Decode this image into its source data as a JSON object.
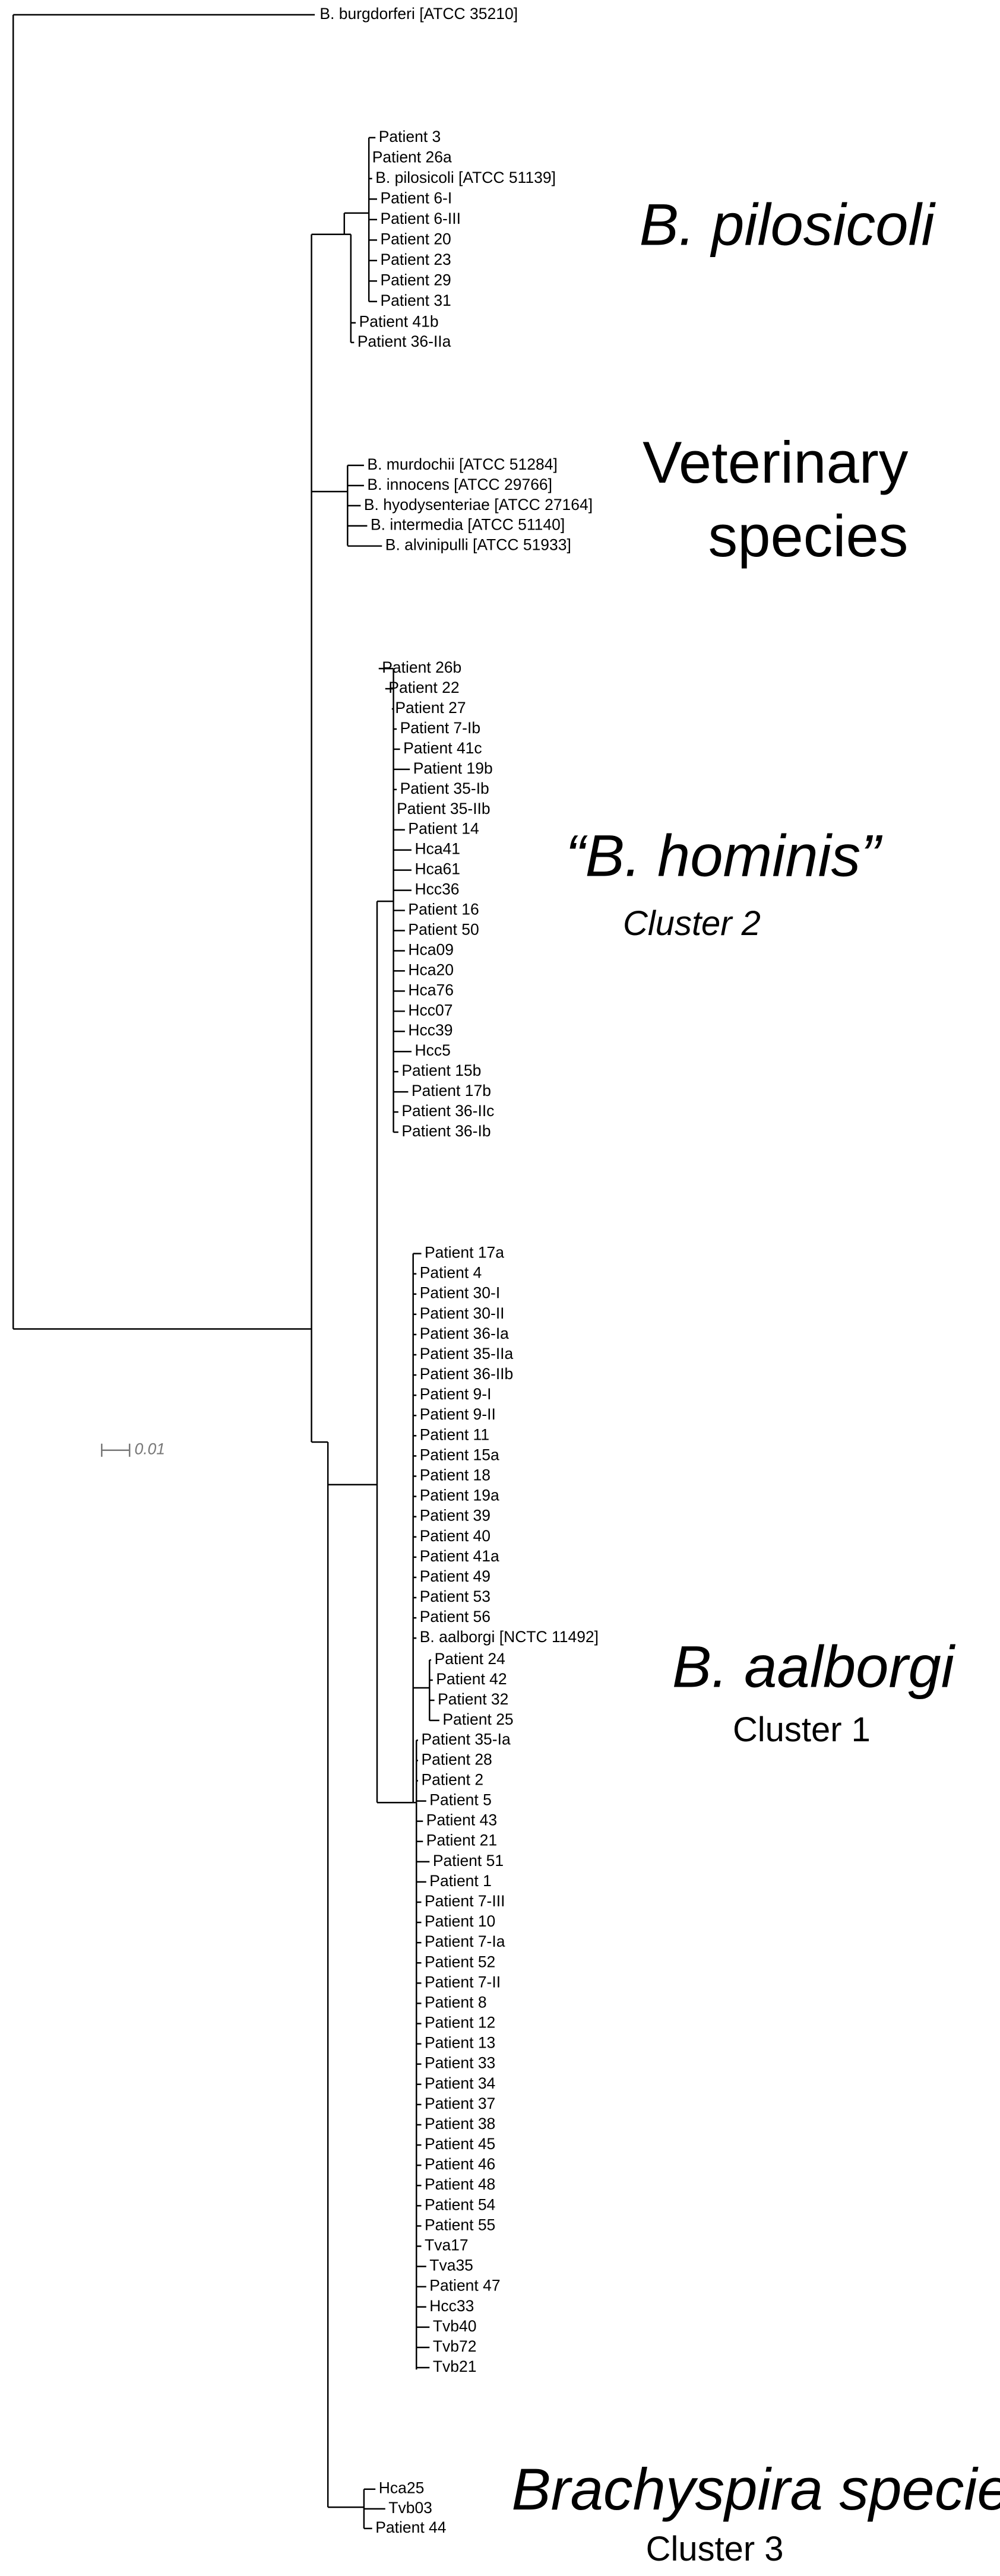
{
  "outgroup": "B. burgdorferi [ATCC 35210]",
  "scale_bar": "0.01",
  "clades": [
    {
      "title_lines": [
        "B. pilosicoli"
      ],
      "leaves": [
        "Patient 3",
        "Patient 26a",
        "B. pilosicoli [ATCC 51139]",
        "Patient 6-I",
        "Patient 6-III",
        "Patient 20",
        "Patient 23",
        "Patient 29",
        "Patient 31",
        "Patient 41b",
        "Patient 36-IIa"
      ]
    },
    {
      "title_lines": [
        "Veterinary",
        "species"
      ],
      "leaves": [
        "B. murdochii [ATCC 51284]",
        "B. innocens [ATCC 29766]",
        "B. hyodysenteriae [ATCC 27164]",
        "B. intermedia [ATCC 51140]",
        "B. alvinipulli [ATCC 51933]"
      ]
    },
    {
      "title_lines": [
        "“B. hominis”"
      ],
      "subtitle": "Cluster 2",
      "leaves": [
        "Patient 26b",
        "Patient 22",
        "Patient 27",
        "Patient 7-Ib",
        "Patient 41c",
        "Patient 19b",
        "Patient 35-Ib",
        "Patient 35-IIb",
        "Patient 14",
        "Hca41",
        "Hca61",
        "Hcc36",
        "Patient 16",
        "Patient 50",
        "Hca09",
        "Hca20",
        "Hca76",
        "Hcc07",
        "Hcc39",
        "Hcc5",
        "Patient 15b",
        "Patient 17b",
        "Patient 36-IIc",
        "Patient 36-Ib"
      ]
    },
    {
      "title_lines": [
        "B. aalborgi"
      ],
      "subtitle": "Cluster 1",
      "leaves": [
        "Patient 17a",
        "Patient 4",
        "Patient 30-I",
        "Patient 30-II",
        "Patient 36-Ia",
        "Patient 35-IIa",
        "Patient 36-IIb",
        "Patient 9-I",
        "Patient 9-II",
        "Patient 11",
        "Patient 15a",
        "Patient 18",
        "Patient 19a",
        "Patient 39",
        "Patient 40",
        "Patient 41a",
        "Patient 49",
        "Patient 53",
        "Patient 56",
        "B. aalborgi [NCTC 11492]",
        "Patient 24",
        "Patient 42",
        "Patient 32",
        "Patient 25",
        "Patient 35-Ia",
        "Patient 28",
        "Patient 2",
        "Patient 5",
        "Patient 43",
        "Patient 21",
        "Patient 51",
        "Patient 1",
        "Patient 7-III",
        "Patient 10",
        "Patient 7-Ia",
        "Patient 52",
        "Patient 7-II",
        "Patient 8",
        "Patient 12",
        "Patient 13",
        "Patient 33",
        "Patient 34",
        "Patient 37",
        "Patient 38",
        "Patient 45",
        "Patient 46",
        "Patient 48",
        "Patient 54",
        "Patient 55",
        "Tva17",
        "Tva35",
        "Patient 47",
        "Hcc33",
        "Tvb40",
        "Tvb72",
        "Tvb21"
      ]
    },
    {
      "title_lines": [
        "Brachyspira species"
      ],
      "subtitle": "Cluster 3",
      "leaves": [
        "Hca25",
        "Tvb03",
        "Patient 44"
      ]
    }
  ]
}
